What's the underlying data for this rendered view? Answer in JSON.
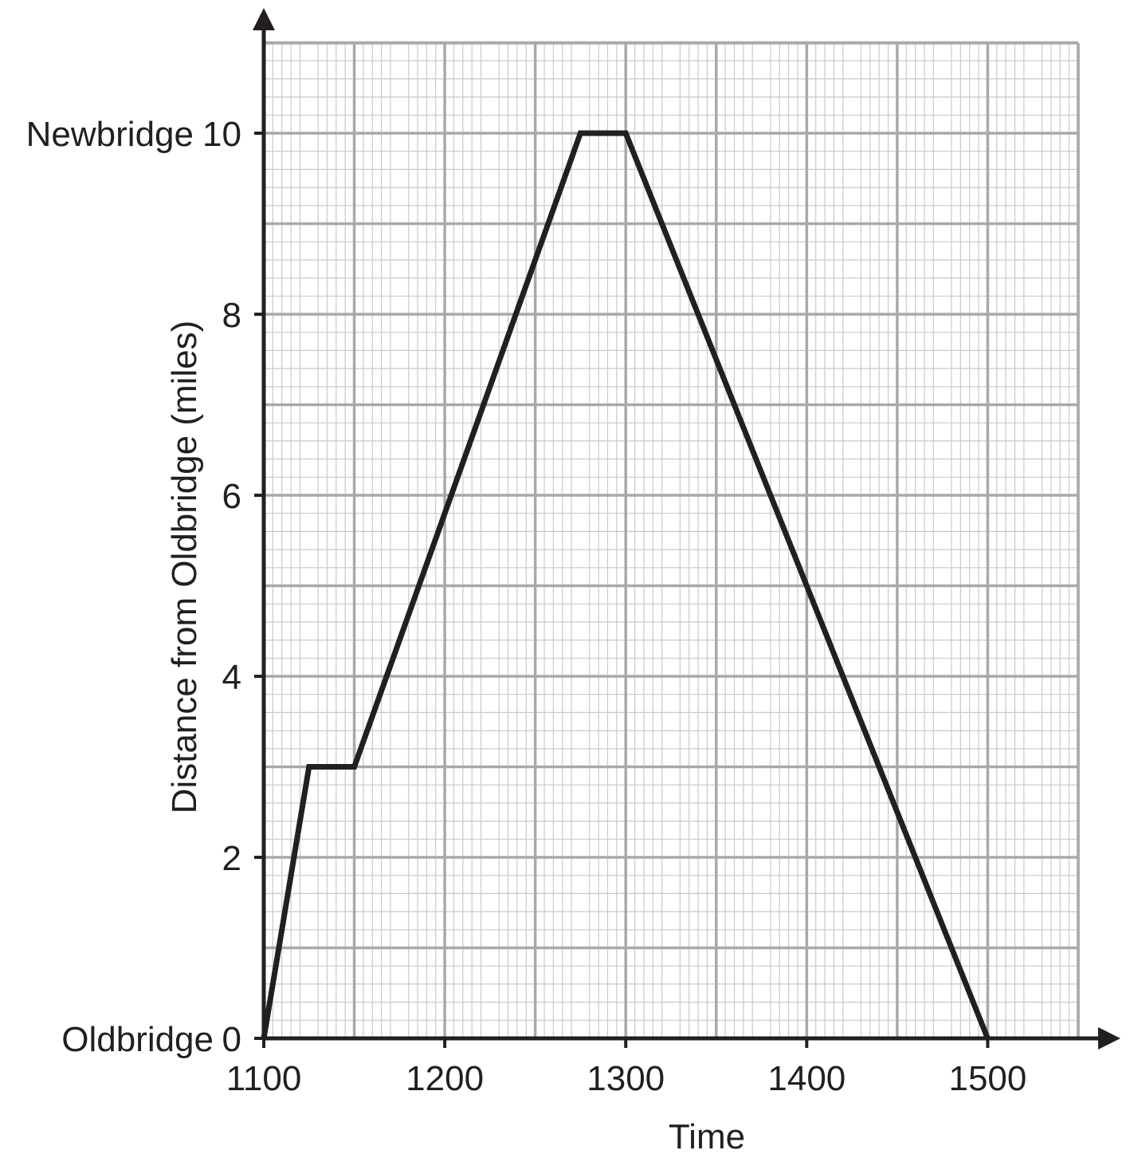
{
  "chart_data": {
    "type": "line",
    "title": "",
    "xlabel": "Time",
    "ylabel": "Distance from Oldbridge (miles)",
    "xlim": [
      1100,
      1550
    ],
    "ylim": [
      0,
      10
    ],
    "x_ticks": [
      {
        "value": 1100,
        "label": "1100"
      },
      {
        "value": 1200,
        "label": "1200"
      },
      {
        "value": 1300,
        "label": "1300"
      },
      {
        "value": 1400,
        "label": "1400"
      },
      {
        "value": 1500,
        "label": "1500"
      }
    ],
    "y_ticks": [
      {
        "value": 0,
        "label": "0"
      },
      {
        "value": 2,
        "label": "2"
      },
      {
        "value": 4,
        "label": "4"
      },
      {
        "value": 6,
        "label": "6"
      },
      {
        "value": 8,
        "label": "8"
      },
      {
        "value": 10,
        "label": "10"
      }
    ],
    "y_place_labels": [
      {
        "value": 0,
        "label": "Oldbridge"
      },
      {
        "value": 10,
        "label": "Newbridge"
      }
    ],
    "grid": true,
    "series": [
      {
        "x": [
          "11:00",
          "11:15",
          "11:30",
          "12:45",
          "13:00",
          "15:00"
        ],
        "y": [
          0,
          3,
          3,
          10,
          10,
          0
        ]
      }
    ]
  }
}
